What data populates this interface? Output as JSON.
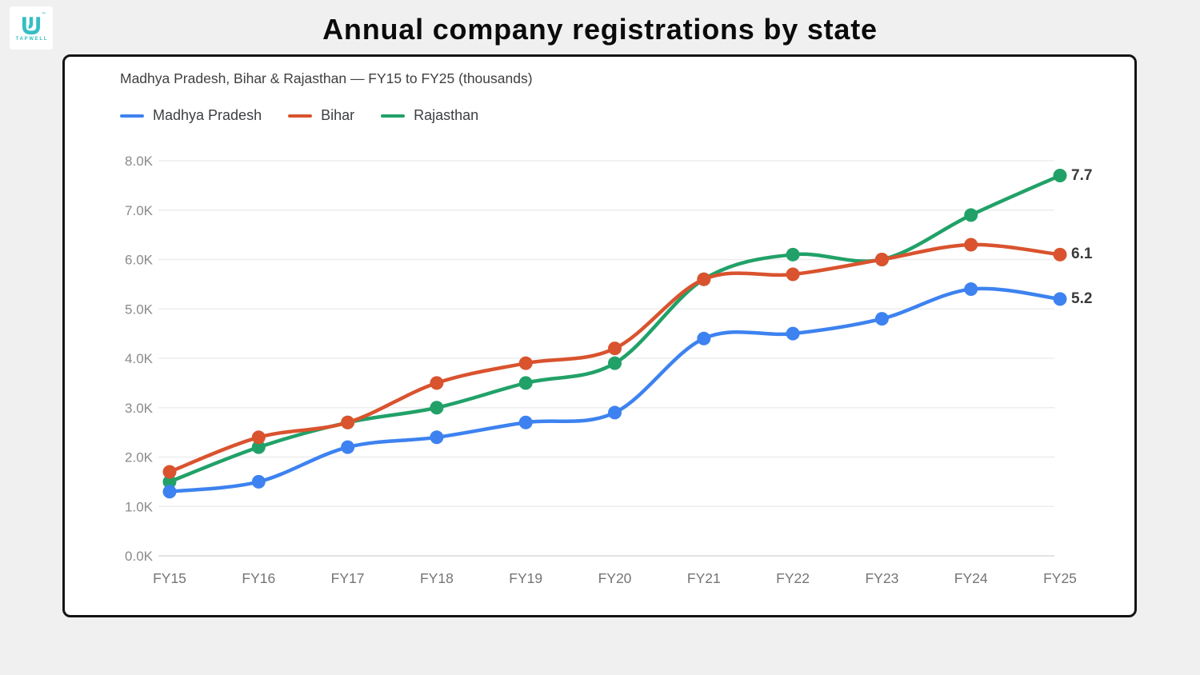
{
  "page": {
    "background": "#F0F0F0"
  },
  "logo": {
    "brand": "TAPWELL",
    "trademark": "™",
    "color": "#35BEC4"
  },
  "header": {
    "title": "Annual company registrations by state"
  },
  "card": {
    "subtitle": "Madhya Pradesh, Bihar & Rajasthan — FY15 to FY25 (thousands)"
  },
  "chart_data": {
    "type": "line",
    "title": "Annual company registrations by state",
    "subtitle": "Madhya Pradesh, Bihar & Rajasthan — FY15 to FY25 (thousands)",
    "unit": "thousands",
    "categories": [
      "FY15",
      "FY16",
      "FY17",
      "FY18",
      "FY19",
      "FY20",
      "FY21",
      "FY22",
      "FY23",
      "FY24",
      "FY25"
    ],
    "series": [
      {
        "name": "Madhya Pradesh",
        "color": "#3D82F0",
        "values": [
          1.3,
          1.5,
          2.2,
          2.4,
          2.7,
          2.9,
          4.4,
          4.5,
          4.8,
          5.4,
          5.2
        ],
        "end_label": "5.2"
      },
      {
        "name": "Bihar",
        "color": "#D9532E",
        "values": [
          1.7,
          2.4,
          2.7,
          3.5,
          3.9,
          4.2,
          5.6,
          5.7,
          6.0,
          6.3,
          6.1
        ],
        "end_label": "6.1"
      },
      {
        "name": "Rajasthan",
        "color": "#21A168",
        "values": [
          1.5,
          2.2,
          2.7,
          3.0,
          3.5,
          3.9,
          5.6,
          6.1,
          6.0,
          6.9,
          7.7
        ],
        "end_label": "7.7"
      }
    ],
    "y_ticks": [
      "0.0K",
      "1.0K",
      "2.0K",
      "3.0K",
      "4.0K",
      "5.0K",
      "6.0K",
      "7.0K",
      "8.0K"
    ],
    "ylim": [
      0,
      8
    ],
    "grid": true,
    "legend_position": "top-left",
    "marker": "circle",
    "colors": {
      "gridline": "#EDEDED",
      "axis_line": "#D8D8D8",
      "y_tick_text": "#8A8A8A",
      "x_tick_text": "#757575"
    }
  }
}
